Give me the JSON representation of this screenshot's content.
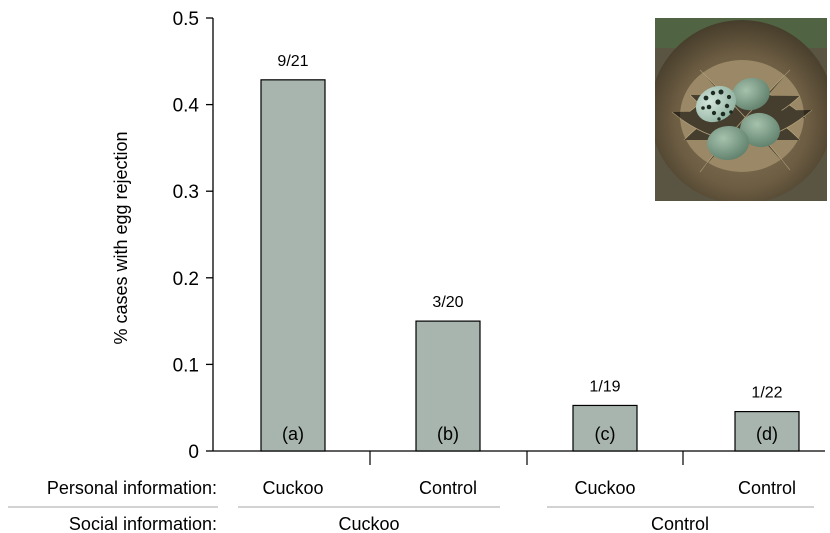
{
  "chart_data": {
    "type": "bar",
    "title": "",
    "ylabel": "% cases with egg rejection",
    "ylim": [
      0,
      0.5
    ],
    "yticks": [
      "0",
      "0.1",
      "0.2",
      "0.3",
      "0.4",
      "0.5"
    ],
    "bars": [
      {
        "value": 0.4286,
        "fraction": "9/21",
        "letter": "(a)",
        "personal": "Cuckoo"
      },
      {
        "value": 0.15,
        "fraction": "3/20",
        "letter": "(b)",
        "personal": "Control"
      },
      {
        "value": 0.0526,
        "fraction": "1/19",
        "letter": "(c)",
        "personal": "Cuckoo"
      },
      {
        "value": 0.0455,
        "fraction": "1/22",
        "letter": "(d)",
        "personal": "Control"
      }
    ],
    "row_labels": {
      "personal": "Personal information:",
      "social": "Social information:"
    },
    "social_groups": [
      "Cuckoo",
      "Control"
    ],
    "bar_color": "#a7b5ae"
  },
  "inset_photo": {
    "icon": "nest-eggs-photo",
    "colors": {
      "nest": "#7a6a4e",
      "egg": "#7f9e8a",
      "cuckoo_egg": "#a9c6b5"
    }
  }
}
